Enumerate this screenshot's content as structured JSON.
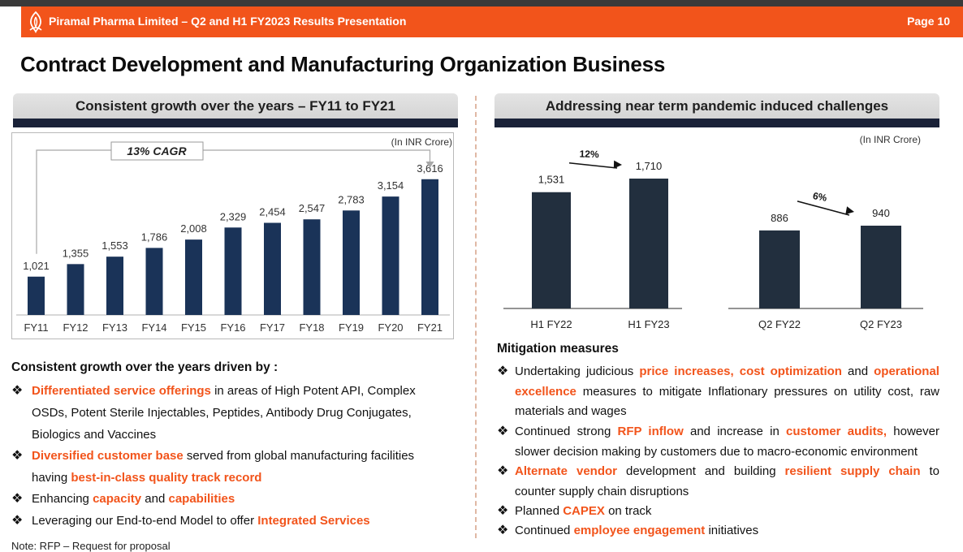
{
  "header": {
    "title": "Piramal Pharma Limited – Q2 and H1 FY2023 Results Presentation",
    "page": "Page 10",
    "brand_color": "#f2541b"
  },
  "main_title": "Contract Development and Manufacturing Organization Business",
  "left_section": {
    "heading": "Consistent growth over the years – FY11 to FY21"
  },
  "right_section": {
    "heading": "Addressing near term pandemic induced challenges"
  },
  "chart_data": [
    {
      "type": "bar",
      "title": "Consistent growth over the years – FY11 to FY21",
      "unit_note": "(In INR Crore)",
      "cagr_label": "13% CAGR",
      "categories": [
        "FY11",
        "FY12",
        "FY13",
        "FY14",
        "FY15",
        "FY16",
        "FY17",
        "FY18",
        "FY19",
        "FY20",
        "FY21"
      ],
      "values": [
        1021,
        1355,
        1553,
        1786,
        2008,
        2329,
        2454,
        2547,
        2783,
        3154,
        3616
      ],
      "value_labels": [
        "1,021",
        "1,355",
        "1,553",
        "1,786",
        "2,008",
        "2,329",
        "2,454",
        "2,547",
        "2,783",
        "3,154",
        "3,616"
      ],
      "ylim": [
        0,
        4000
      ],
      "bar_color": "#1a3358"
    },
    {
      "type": "bar",
      "title": "Addressing near term pandemic induced challenges",
      "unit_note": "(In INR Crore)",
      "groups": [
        {
          "categories": [
            "H1 FY22",
            "H1 FY23"
          ],
          "values": [
            1531,
            1710
          ],
          "value_labels": [
            "1,531",
            "1,710"
          ],
          "growth_label": "12%",
          "ylim": [
            0,
            2000
          ]
        },
        {
          "categories": [
            "Q2 FY22",
            "Q2 FY23"
          ],
          "values": [
            886,
            940
          ],
          "value_labels": [
            "886",
            "940"
          ],
          "growth_label": "6%",
          "ylim": [
            0,
            1600
          ]
        }
      ],
      "bar_color": "#222f3e"
    }
  ],
  "drivers": {
    "title": "Consistent growth over the years driven by :",
    "items": [
      {
        "lines": [
          [
            {
              "t": "Differentiated service offerings",
              "h": true
            },
            {
              "t": " in areas of High Potent API, Complex",
              "h": false
            }
          ],
          [
            {
              "t": "OSDs, Potent Sterile Injectables, Peptides, Antibody Drug Conjugates,",
              "h": false
            }
          ],
          [
            {
              "t": "Biologics and Vaccines",
              "h": false
            }
          ]
        ]
      },
      {
        "lines": [
          [
            {
              "t": "Diversified customer base",
              "h": true
            },
            {
              "t": " served from global manufacturing facilities",
              "h": false
            }
          ],
          [
            {
              "t": "having ",
              "h": false
            },
            {
              "t": "best-in-class quality track record",
              "h": true
            }
          ]
        ]
      },
      {
        "lines": [
          [
            {
              "t": "Enhancing ",
              "h": false
            },
            {
              "t": "capacity",
              "h": true
            },
            {
              "t": " and ",
              "h": false
            },
            {
              "t": "capabilities",
              "h": true
            }
          ]
        ]
      },
      {
        "lines": [
          [
            {
              "t": "Leveraging our End-to-end Model to offer ",
              "h": false
            },
            {
              "t": "Integrated Services",
              "h": true
            }
          ]
        ]
      }
    ]
  },
  "note": "Note: RFP – Request for proposal",
  "mitigation": {
    "title": "Mitigation measures",
    "items": [
      {
        "lines": [
          {
            "justify": true,
            "segs": [
              {
                "t": "Undertaking judicious ",
                "h": false
              },
              {
                "t": "price increases, cost optimization",
                "h": true
              },
              {
                "t": " and ",
                "h": false
              },
              {
                "t": "operational",
                "h": true
              }
            ]
          },
          {
            "justify": true,
            "segs": [
              {
                "t": "excellence",
                "h": true
              },
              {
                "t": " measures to mitigate Inflationary pressures on utility cost, raw",
                "h": false
              }
            ]
          },
          {
            "justify": false,
            "segs": [
              {
                "t": "materials and wages",
                "h": false
              }
            ]
          }
        ]
      },
      {
        "lines": [
          {
            "justify": true,
            "segs": [
              {
                "t": "Continued strong ",
                "h": false
              },
              {
                "t": "RFP inflow",
                "h": true
              },
              {
                "t": " and increase in ",
                "h": false
              },
              {
                "t": "customer audits,",
                "h": true
              },
              {
                "t": " however",
                "h": false
              }
            ]
          },
          {
            "justify": false,
            "segs": [
              {
                "t": "slower decision making by customers due to macro-economic environment",
                "h": false
              }
            ]
          }
        ]
      },
      {
        "lines": [
          {
            "justify": true,
            "segs": [
              {
                "t": "Alternate vendor",
                "h": true
              },
              {
                "t": " development and building ",
                "h": false
              },
              {
                "t": "resilient supply chain",
                "h": true
              },
              {
                "t": " to",
                "h": false
              }
            ]
          },
          {
            "justify": false,
            "segs": [
              {
                "t": "counter supply chain disruptions",
                "h": false
              }
            ]
          }
        ]
      },
      {
        "lines": [
          {
            "justify": false,
            "segs": [
              {
                "t": "Planned ",
                "h": false
              },
              {
                "t": "CAPEX",
                "h": true
              },
              {
                "t": " on track",
                "h": false
              }
            ]
          }
        ]
      },
      {
        "lines": [
          {
            "justify": false,
            "segs": [
              {
                "t": "Continued ",
                "h": false
              },
              {
                "t": "employee engagement",
                "h": true
              },
              {
                "t": " initiatives",
                "h": false
              }
            ]
          }
        ]
      }
    ]
  }
}
